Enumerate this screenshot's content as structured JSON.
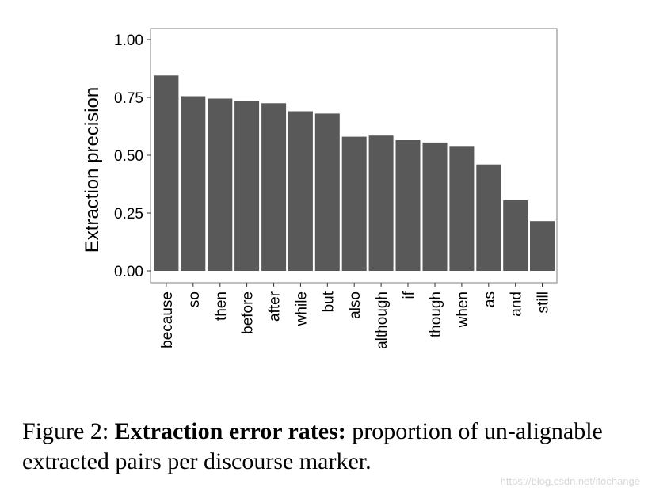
{
  "chart_data": {
    "type": "bar",
    "categories": [
      "because",
      "so",
      "then",
      "before",
      "after",
      "while",
      "but",
      "also",
      "although",
      "if",
      "though",
      "when",
      "as",
      "and",
      "still"
    ],
    "values": [
      0.845,
      0.755,
      0.745,
      0.735,
      0.725,
      0.69,
      0.68,
      0.58,
      0.585,
      0.565,
      0.555,
      0.54,
      0.46,
      0.305,
      0.215
    ],
    "title": "",
    "xlabel": "",
    "ylabel": "Extraction precision",
    "ylim": [
      0,
      1
    ],
    "yticks": [
      "0.00",
      "0.25",
      "0.50",
      "0.75",
      "1.00"
    ],
    "ytick_values": [
      0,
      0.25,
      0.5,
      0.75,
      1.0
    ],
    "bar_color": "#595959",
    "grid": false,
    "legend": "none"
  },
  "caption": {
    "label": "Figure 2:",
    "bold_text": "Extraction error rates:",
    "text": "proportion of un-alignable extracted pairs per discourse marker."
  },
  "watermark": "https://blog.csdn.net/itochange"
}
